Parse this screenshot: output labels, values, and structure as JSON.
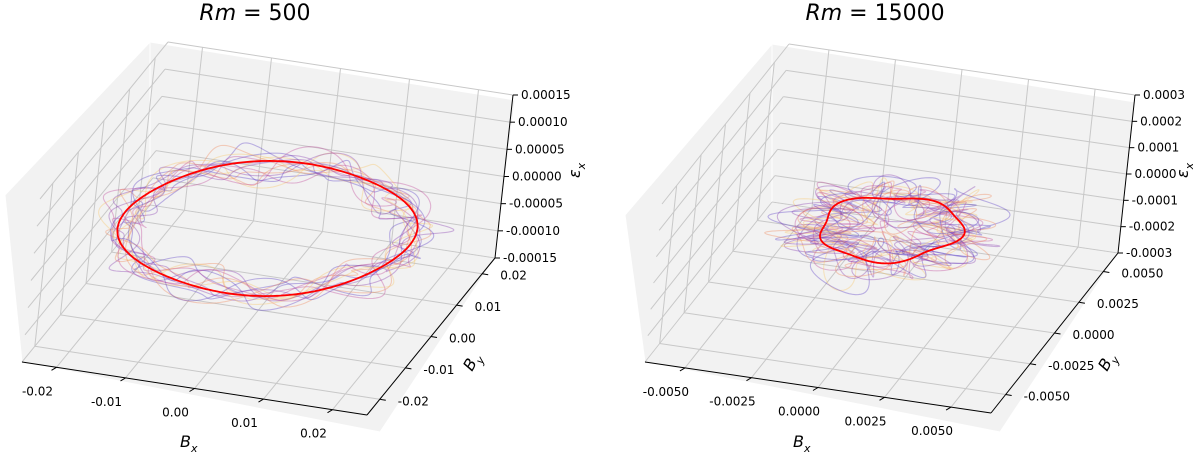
{
  "chart_data": [
    {
      "type": "line3d",
      "title": "Rm = 500",
      "title_var": "Rm",
      "title_eq": " = 500",
      "xlabel_sym": "B",
      "xlabel_sub": "x",
      "ylabel_sym": "B",
      "ylabel_sub": "y",
      "zlabel_sym": "ε",
      "zlabel_sub": "x",
      "x_ticks": [
        "-0.02",
        "-0.01",
        "0.00",
        "0.01",
        "0.02"
      ],
      "y_ticks": [
        "-0.02",
        "-0.01",
        "0.00",
        "0.01",
        "0.02"
      ],
      "z_ticks": [
        "-0.00015",
        "-0.00010",
        "-0.00005",
        "0.00000",
        "0.00005",
        "0.00010",
        "0.00015"
      ],
      "x_range": [
        -0.025,
        0.025
      ],
      "y_range": [
        -0.025,
        0.025
      ],
      "z_range": [
        -0.00015,
        0.00015
      ],
      "mean_orbit": {
        "radius": 0.02,
        "color": "#ff0000"
      },
      "trajectory_colors": [
        "#5b3fc4",
        "#c04a9a",
        "#f08a5d",
        "#f6c668",
        "#8a3fb0"
      ],
      "trajectory_count": 16,
      "noise": 0.18
    },
    {
      "type": "line3d",
      "title": "Rm = 15000",
      "title_var": "Rm",
      "title_eq": " = 15000",
      "xlabel_sym": "B",
      "xlabel_sub": "x",
      "ylabel_sym": "B",
      "ylabel_sub": "y",
      "zlabel_sym": "ε",
      "zlabel_sub": "x",
      "x_ticks": [
        "-0.0050",
        "-0.0025",
        "0.0000",
        "0.0025",
        "0.0050"
      ],
      "y_ticks": [
        "-0.0050",
        "-0.0025",
        "0.0000",
        "0.0025",
        "0.0050"
      ],
      "z_ticks": [
        "-0.0003",
        "-0.0002",
        "-0.0001",
        "0.0000",
        "0.0001",
        "0.0002",
        "0.0003"
      ],
      "x_range": [
        -0.0065,
        0.0065
      ],
      "y_range": [
        -0.0065,
        0.0065
      ],
      "z_range": [
        -0.0003,
        0.0003
      ],
      "mean_orbit": {
        "radius": 0.0025,
        "color": "#ff0000"
      },
      "trajectory_colors": [
        "#5b3fc4",
        "#c04a9a",
        "#f08a5d",
        "#f6c668",
        "#8a3fb0"
      ],
      "trajectory_count": 16,
      "noise": 0.75
    }
  ]
}
